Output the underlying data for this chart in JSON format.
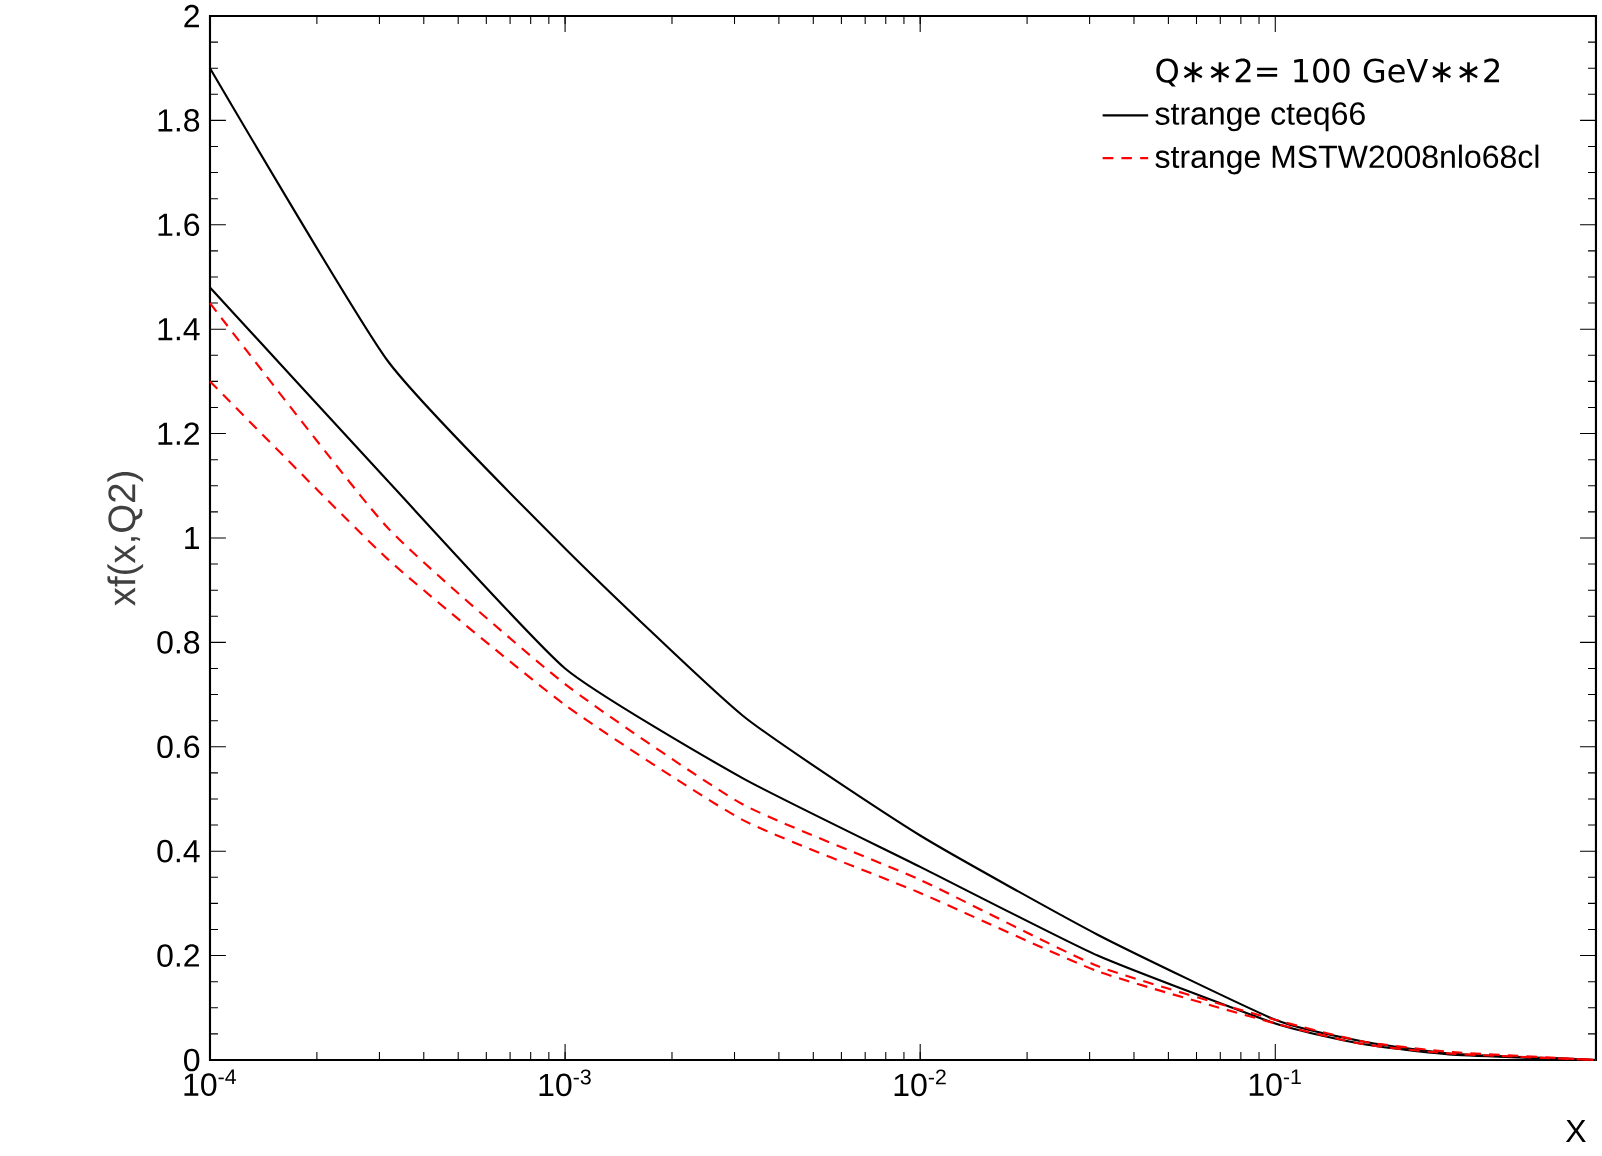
{
  "chart_data": {
    "type": "line",
    "xlabel": "X",
    "ylabel": "xf(x,Q2)",
    "legend_title": "Q∗∗2=   100       GeV∗∗2",
    "log": "x",
    "xlim": [
      0.0001,
      0.8
    ],
    "ylim": [
      0,
      2
    ],
    "xticks": [
      {
        "value": 0.0001,
        "label": "10$^{-4}$"
      },
      {
        "value": 0.001,
        "label": "10$^{-3}$"
      },
      {
        "value": 0.01,
        "label": "10$^{-2}$"
      },
      {
        "value": 0.1,
        "label": "10$^{-1}$"
      }
    ],
    "yticks": [
      0,
      0.2,
      0.4,
      0.6,
      0.8,
      1,
      1.2,
      1.4,
      1.6,
      1.8,
      2
    ],
    "x": [
      0.0001,
      0.000316,
      0.001,
      0.00316,
      0.01,
      0.0316,
      0.1,
      0.178,
      0.316,
      0.8
    ],
    "grid": false,
    "legend": "top right",
    "marker": "none",
    "series": [
      {
        "name": "strange  cteq66",
        "color": "#000000",
        "line_style": "solid",
        "values": [
          1.9,
          1.34,
          0.98,
          0.66,
          0.43,
          0.24,
          0.077,
          0.035,
          0.012,
          0
        ]
      },
      {
        "color": "#000000",
        "line_style": "solid",
        "values": [
          1.48,
          1.11,
          0.75,
          0.54,
          0.37,
          0.2,
          0.07,
          0.03,
          0.01,
          0
        ]
      },
      {
        "name": "strange  MSTW2008nlo68cl",
        "color": "#ff0000",
        "line_style": "dashed",
        "values": [
          1.45,
          1.02,
          0.72,
          0.49,
          0.345,
          0.18,
          0.077,
          0.035,
          0.015,
          0
        ]
      },
      {
        "color": "#ff0000",
        "line_style": "dashed",
        "values": [
          1.3,
          0.96,
          0.68,
          0.46,
          0.32,
          0.17,
          0.07,
          0.03,
          0.012,
          0
        ]
      }
    ]
  }
}
